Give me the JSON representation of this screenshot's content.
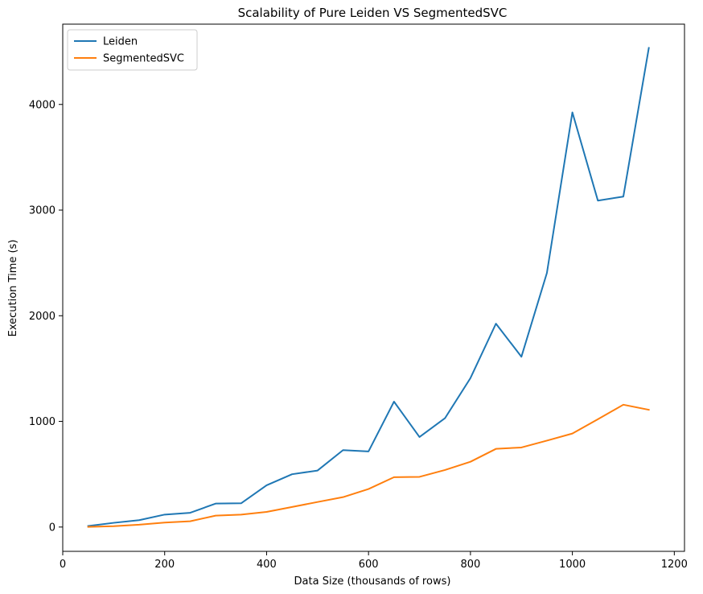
{
  "chart_data": {
    "type": "line",
    "title": "Scalability of Pure Leiden VS SegmentedSVC",
    "xlabel": "Data Size (thousands of rows)",
    "ylabel": "Execution Time (s)",
    "x": [
      50,
      100,
      150,
      200,
      250,
      300,
      350,
      400,
      450,
      500,
      550,
      600,
      650,
      700,
      750,
      800,
      850,
      900,
      950,
      1000,
      1050,
      1100,
      1150
    ],
    "series": [
      {
        "name": "Leiden",
        "color": "#1f77b4",
        "values": [
          10,
          40,
          65,
          118,
          135,
          222,
          225,
          395,
          500,
          535,
          728,
          716,
          1187,
          852,
          1030,
          1410,
          1925,
          1612,
          2405,
          3925,
          3090,
          3128,
          4535
        ]
      },
      {
        "name": "SegmentedSVC",
        "color": "#ff7f0e",
        "values": [
          2,
          8,
          22,
          42,
          55,
          108,
          118,
          143,
          190,
          237,
          283,
          360,
          472,
          475,
          540,
          618,
          740,
          753,
          818,
          885,
          1020,
          1158,
          1110
        ]
      }
    ],
    "xlim": [
      0,
      1220
    ],
    "ylim": [
      -230,
      4760
    ],
    "xticks": [
      0,
      200,
      400,
      600,
      800,
      1000,
      1200
    ],
    "xtick_labels": [
      "0",
      "200",
      "400",
      "600",
      "800",
      "1000",
      "1200"
    ],
    "yticks": [
      0,
      1000,
      2000,
      3000,
      4000
    ],
    "ytick_labels": [
      "0",
      "1000",
      "2000",
      "3000",
      "4000"
    ],
    "grid": false,
    "legend_position": "top-left"
  }
}
